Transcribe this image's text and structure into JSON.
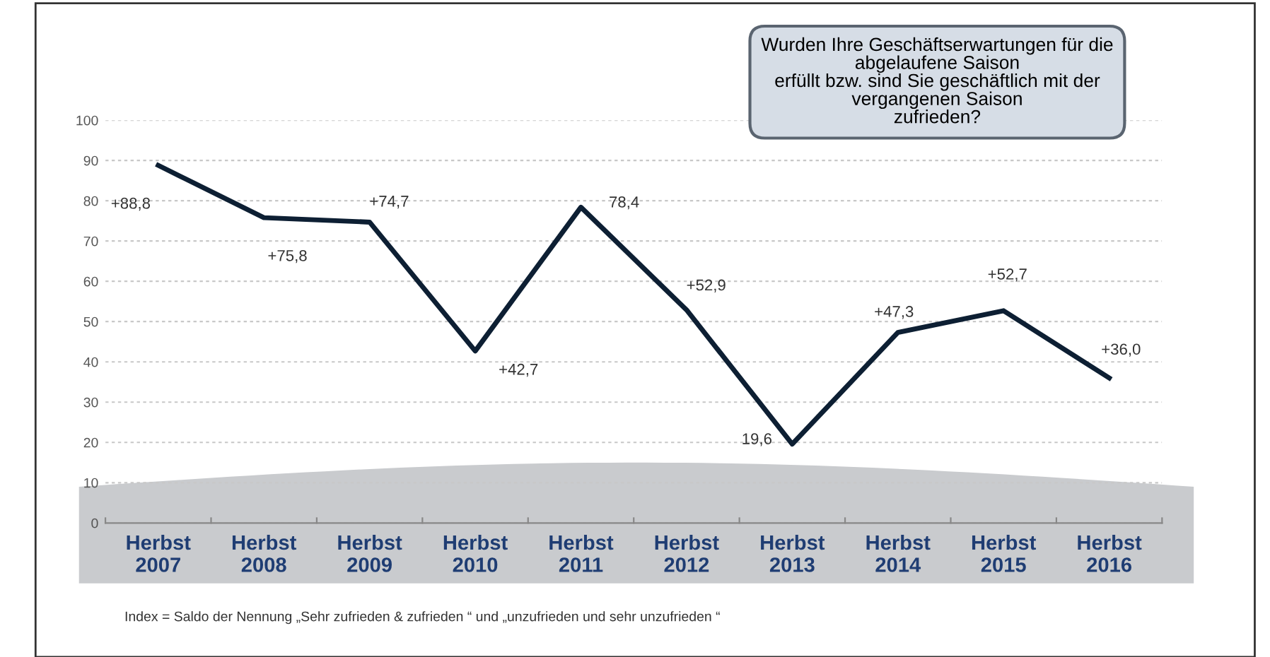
{
  "chart_data": {
    "type": "line",
    "categories": [
      "Herbst\n2007",
      "Herbst\n2008",
      "Herbst\n2009",
      "Herbst\n2010",
      "Herbst\n2011",
      "Herbst\n2012",
      "Herbst\n2013",
      "Herbst\n2014",
      "Herbst\n2015",
      "Herbst\n2016"
    ],
    "series": [
      {
        "color": "#0d1f33",
        "values": [
          88.8,
          75.8,
          74.7,
          42.7,
          78.4,
          52.9,
          19.6,
          47.3,
          52.7,
          36.0
        ],
        "value_labels": [
          "+88,8",
          "+75,8",
          "+74,7",
          "+42,7",
          "78,4",
          "+52,9",
          "19,6",
          "+47,3",
          "+52,7",
          "+36,0"
        ]
      }
    ],
    "ylim": [
      0,
      100
    ],
    "yticks": [
      0,
      10,
      20,
      30,
      40,
      50,
      60,
      70,
      80,
      90,
      100
    ],
    "grid": "y",
    "marker": "none",
    "line_style": "solid",
    "legend": false,
    "annotations": [
      "Wurden Ihre Geschäftserwartungen für die\nabgelaufene Saison\nerfüllt bzw. sind Sie geschäftlich mit der\nvergangenen Saison\nzufrieden?",
      "Index = Saldo der Nennung „Sehr zufrieden & zufrieden “ und „unzufrieden und sehr unzufrieden “"
    ]
  }
}
